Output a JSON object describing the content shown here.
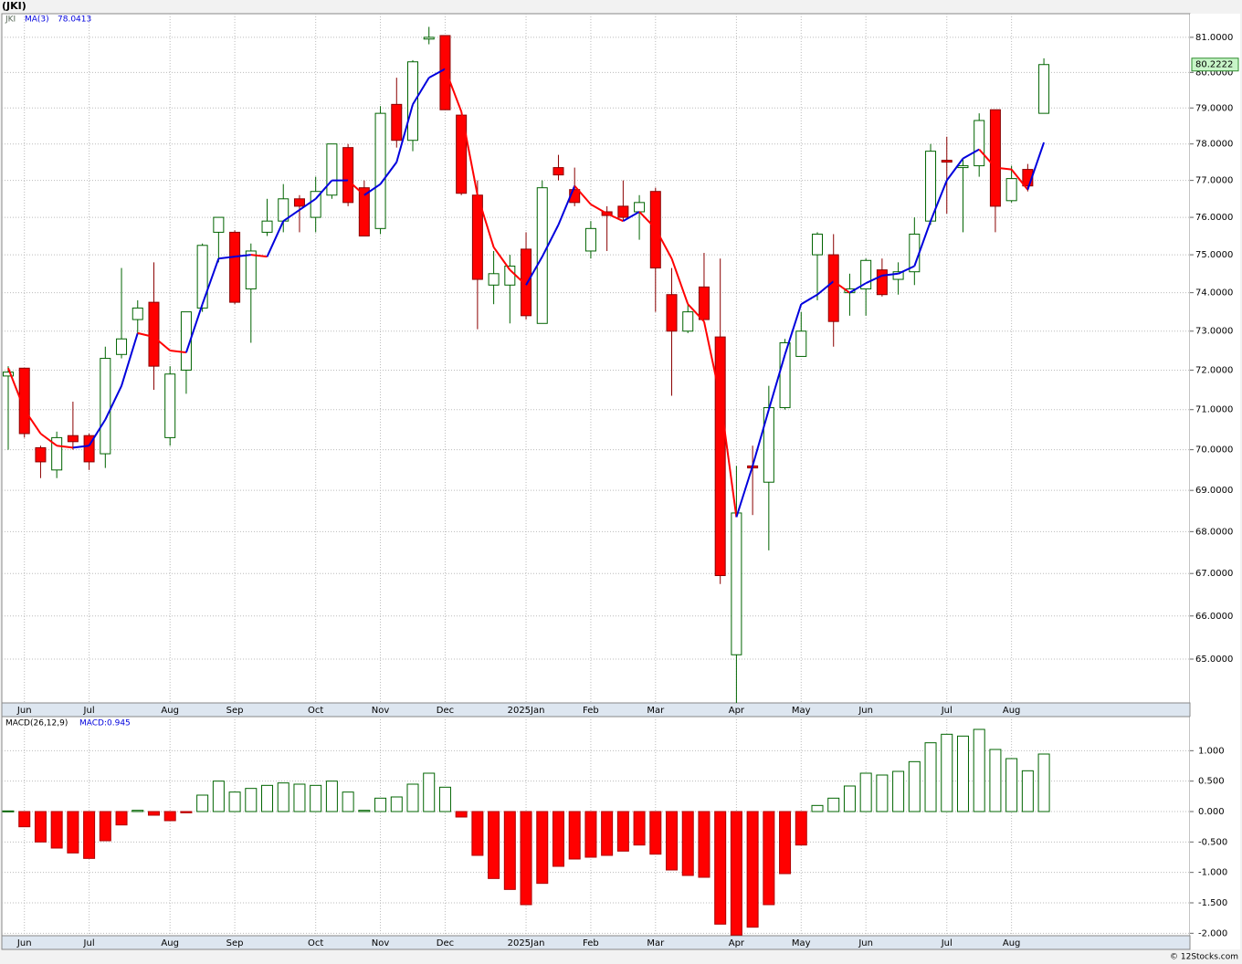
{
  "chart_data": [
    {
      "type": "candlestick",
      "title": "(JKI)",
      "ticker": "JKI",
      "log": true,
      "grid": true,
      "up_color": "#006400",
      "down_color": "#ff0000",
      "categories": [
        null,
        "Jun",
        null,
        null,
        null,
        "Jul",
        null,
        null,
        null,
        null,
        "Aug",
        null,
        null,
        null,
        "Sep",
        null,
        null,
        null,
        null,
        "Oct",
        null,
        null,
        null,
        "Nov",
        null,
        null,
        null,
        "Dec",
        null,
        null,
        null,
        null,
        "2025Jan",
        null,
        null,
        null,
        "Feb",
        null,
        null,
        null,
        "Mar",
        null,
        null,
        null,
        null,
        "Apr",
        null,
        null,
        null,
        "May",
        null,
        null,
        null,
        "Jun",
        null,
        null,
        null,
        null,
        "Jul",
        null,
        null,
        null,
        "Aug",
        null,
        null
      ],
      "open": [
        71.85,
        72.05,
        70.05,
        69.5,
        70.35,
        70.35,
        69.9,
        72.4,
        73.3,
        73.75,
        70.3,
        72.0,
        73.6,
        75.6,
        75.6,
        74.1,
        75.6,
        75.9,
        76.5,
        76.0,
        76.6,
        77.9,
        76.8,
        75.7,
        79.1,
        78.1,
        80.95,
        81.05,
        78.8,
        76.6,
        74.2,
        74.2,
        75.15,
        73.2,
        77.35,
        76.75,
        75.1,
        76.15,
        76.3,
        76.15,
        76.7,
        73.95,
        73.0,
        74.15,
        72.85,
        65.1,
        69.6,
        69.2,
        71.05,
        72.35,
        75.0,
        75.0,
        74.0,
        74.1,
        74.6,
        74.35,
        74.55,
        75.9,
        77.55,
        77.35,
        77.4,
        78.95,
        76.45,
        77.3,
        78.85
      ],
      "high": [
        72.1,
        72.05,
        70.1,
        70.45,
        71.2,
        70.4,
        72.6,
        74.65,
        73.8,
        74.8,
        72.1,
        73.5,
        75.3,
        76.0,
        75.65,
        75.3,
        76.5,
        76.9,
        76.6,
        77.1,
        78.0,
        78.0,
        77.0,
        79.05,
        79.85,
        80.35,
        81.3,
        81.05,
        78.8,
        77.0,
        75.1,
        75.0,
        75.6,
        77.0,
        77.7,
        77.35,
        75.9,
        76.3,
        77.0,
        76.6,
        76.8,
        74.65,
        73.7,
        75.05,
        74.9,
        69.6,
        70.1,
        71.6,
        72.8,
        73.5,
        75.6,
        75.55,
        74.5,
        74.9,
        74.9,
        74.8,
        76.0,
        78.0,
        78.2,
        77.6,
        78.85,
        78.95,
        77.4,
        77.45,
        80.4
      ],
      "low": [
        70.0,
        70.3,
        69.3,
        69.3,
        70.0,
        69.5,
        69.55,
        72.3,
        72.9,
        71.5,
        70.1,
        71.4,
        73.5,
        74.8,
        73.7,
        72.7,
        75.5,
        75.6,
        75.6,
        75.6,
        76.5,
        76.3,
        75.5,
        75.55,
        77.9,
        77.8,
        80.8,
        78.95,
        76.6,
        73.05,
        73.7,
        73.2,
        73.3,
        73.2,
        77.0,
        76.3,
        74.9,
        75.1,
        75.9,
        75.4,
        73.5,
        71.35,
        72.95,
        73.3,
        66.75,
        64.0,
        68.4,
        67.55,
        71.0,
        72.35,
        73.8,
        72.6,
        73.4,
        73.4,
        73.9,
        73.95,
        74.2,
        75.8,
        76.1,
        75.6,
        77.1,
        75.6,
        76.4,
        76.7,
        78.85
      ],
      "close": [
        71.95,
        70.4,
        69.7,
        70.3,
        70.2,
        69.7,
        72.3,
        72.8,
        73.6,
        72.1,
        71.9,
        73.5,
        75.25,
        76.0,
        73.75,
        75.1,
        75.9,
        76.5,
        76.3,
        76.7,
        78.0,
        76.4,
        75.5,
        78.85,
        78.1,
        80.3,
        81.0,
        78.95,
        76.65,
        74.35,
        74.5,
        74.7,
        73.4,
        76.8,
        77.15,
        76.4,
        75.7,
        76.05,
        76.0,
        76.4,
        74.65,
        73.0,
        73.5,
        73.3,
        66.95,
        68.45,
        69.55,
        71.05,
        72.7,
        73.0,
        75.55,
        73.25,
        74.1,
        74.85,
        73.95,
        74.55,
        75.55,
        77.8,
        77.5,
        77.4,
        78.65,
        76.3,
        77.05,
        76.85,
        80.2222
      ],
      "ylim": [
        64.0,
        81.68
      ],
      "yticks": [
        {
          "value": 65,
          "label": "65.0000"
        },
        {
          "value": 66,
          "label": "66.0000"
        },
        {
          "value": 67,
          "label": "67.0000"
        },
        {
          "value": 68,
          "label": "68.0000"
        },
        {
          "value": 69,
          "label": "69.0000"
        },
        {
          "value": 70,
          "label": "70.0000"
        },
        {
          "value": 71,
          "label": "71.0000"
        },
        {
          "value": 72,
          "label": "72.0000"
        },
        {
          "value": 73,
          "label": "73.0000"
        },
        {
          "value": 74,
          "label": "74.0000"
        },
        {
          "value": 75,
          "label": "75.0000"
        },
        {
          "value": 76,
          "label": "76.0000"
        },
        {
          "value": 77,
          "label": "77.0000"
        },
        {
          "value": 78,
          "label": "78.0000"
        },
        {
          "value": 79,
          "label": "79.0000"
        },
        {
          "value": 80,
          "label": "80.0000"
        },
        {
          "value": 81,
          "label": "81.0000"
        }
      ],
      "ma": {
        "name": "MA(3)",
        "color_up": "#0000dd",
        "color_down": "#ff0000",
        "values": [
          72.05,
          71.0,
          70.4,
          70.1,
          70.05,
          70.1,
          70.75,
          71.6,
          72.95,
          72.85,
          72.5,
          72.45,
          73.7,
          74.9,
          74.95,
          75.0,
          74.95,
          75.9,
          76.2,
          76.5,
          77.0,
          77.0,
          76.6,
          76.9,
          77.5,
          79.1,
          79.85,
          80.1,
          78.9,
          76.6,
          75.2,
          74.6,
          74.2,
          74.95,
          75.8,
          76.85,
          76.35,
          76.1,
          75.9,
          76.15,
          75.7,
          74.9,
          73.7,
          73.25,
          71.3,
          68.35,
          69.6,
          71.0,
          72.4,
          73.7,
          73.95,
          74.3,
          74.0,
          74.25,
          74.45,
          74.5,
          74.7,
          75.9,
          77.0,
          77.6,
          77.85,
          77.35,
          77.3,
          76.75,
          78.0413
        ]
      }
    },
    {
      "type": "bar",
      "name": "MACD(26,12,9)",
      "value_label": "MACD:0.945",
      "grid": true,
      "up_color": "#006400",
      "down_color": "#ff0000",
      "values": [
        0.01,
        -0.25,
        -0.5,
        -0.6,
        -0.68,
        -0.77,
        -0.48,
        -0.22,
        0.02,
        -0.06,
        -0.15,
        -0.02,
        0.27,
        0.5,
        0.32,
        0.38,
        0.43,
        0.47,
        0.45,
        0.43,
        0.5,
        0.32,
        0.02,
        0.22,
        0.24,
        0.45,
        0.63,
        0.4,
        -0.09,
        -0.72,
        -1.1,
        -1.28,
        -1.53,
        -1.18,
        -0.9,
        -0.78,
        -0.75,
        -0.72,
        -0.65,
        -0.55,
        -0.7,
        -0.96,
        -1.05,
        -1.08,
        -1.85,
        -2.03,
        -1.9,
        -1.53,
        -1.02,
        -0.55,
        0.1,
        0.22,
        0.42,
        0.63,
        0.6,
        0.66,
        0.82,
        1.13,
        1.27,
        1.24,
        1.35,
        1.02,
        0.87,
        0.67,
        0.945
      ],
      "ylim": [
        -2.04,
        1.56
      ],
      "yticks": [
        {
          "value": -2,
          "label": "-2.000"
        },
        {
          "value": -1.5,
          "label": "-1.500"
        },
        {
          "value": -1,
          "label": "-1.000"
        },
        {
          "value": -0.5,
          "label": "-0.500"
        },
        {
          "value": 0,
          "label": "0.000"
        },
        {
          "value": 0.5,
          "label": "0.500"
        },
        {
          "value": 1,
          "label": "1.000"
        }
      ]
    }
  ],
  "footer": "© 12Stocks.com"
}
